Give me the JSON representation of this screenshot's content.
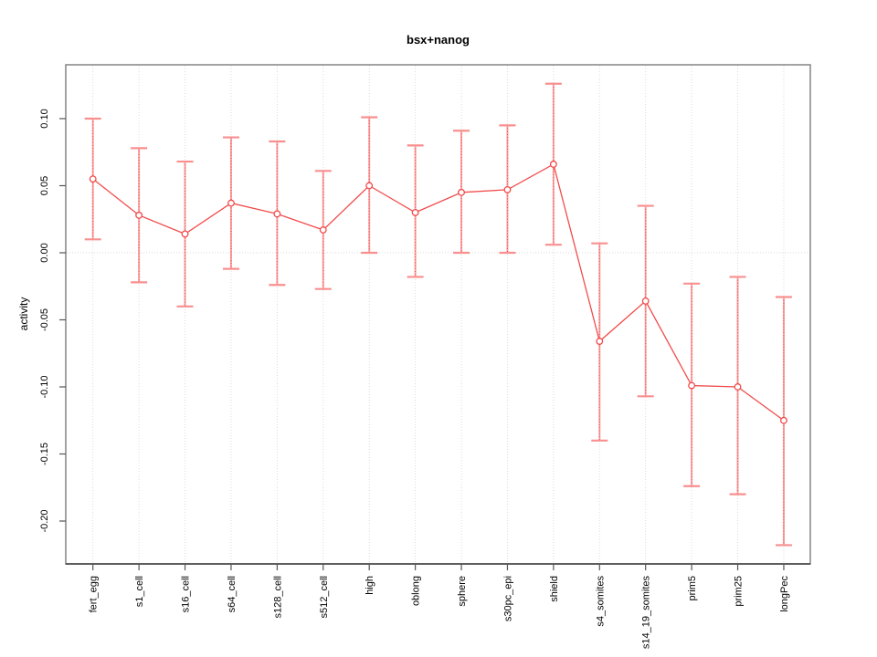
{
  "chart_data": {
    "type": "line",
    "title": "bsx+nanog",
    "xlabel": "",
    "ylabel": "activity",
    "legend": "none",
    "marker": "open-circle",
    "error_bars": true,
    "grid": "vertical dotted gridlines at each category plus dotted horizontal line at y=0",
    "categories": [
      "fert_egg",
      "s1_cell",
      "s16_cell",
      "s64_cell",
      "s128_cell",
      "s512_cell",
      "high",
      "oblong",
      "sphere",
      "s30pc_epi",
      "shield",
      "s4_somites",
      "s14_19_somites",
      "prim5",
      "prim25",
      "longPec"
    ],
    "series": [
      {
        "name": "bsx+nanog activity",
        "values": [
          0.055,
          0.028,
          0.014,
          0.037,
          0.029,
          0.017,
          0.05,
          0.03,
          0.045,
          0.047,
          0.066,
          -0.066,
          -0.036,
          -0.099,
          -0.1,
          -0.125
        ],
        "lower": [
          0.01,
          -0.022,
          -0.04,
          -0.012,
          -0.024,
          -0.027,
          0.0,
          -0.018,
          0.0,
          0.0,
          0.006,
          -0.14,
          -0.107,
          -0.174,
          -0.18,
          -0.218
        ],
        "upper": [
          0.1,
          0.078,
          0.068,
          0.086,
          0.083,
          0.061,
          0.101,
          0.08,
          0.091,
          0.095,
          0.126,
          0.007,
          0.035,
          -0.023,
          -0.018,
          -0.033
        ]
      }
    ],
    "yticks": [
      0.1,
      0.05,
      0.0,
      -0.05,
      -0.1,
      -0.15,
      -0.2
    ],
    "ytick_labels": [
      "0.10",
      "0.05",
      "0.00",
      "-0.05",
      "-0.10",
      "-0.15",
      "-0.20"
    ],
    "ylim": [
      -0.232,
      0.14
    ],
    "zero_line": 0.0,
    "colors": {
      "line": "#f24b4b",
      "marker_stroke": "#f24b4b",
      "marker_fill": "#ffffff",
      "errorbar_stem": "#f9a2a2",
      "errorbar_dots": "#ef4444",
      "errorbar_cap": "#f98f8f",
      "gridline": "#dcdcdc",
      "zero_line_color": "#d9d9d9",
      "box": "#8c8c8c",
      "axis_line": "#404040",
      "tick": "#555555",
      "text": "#000000"
    }
  }
}
